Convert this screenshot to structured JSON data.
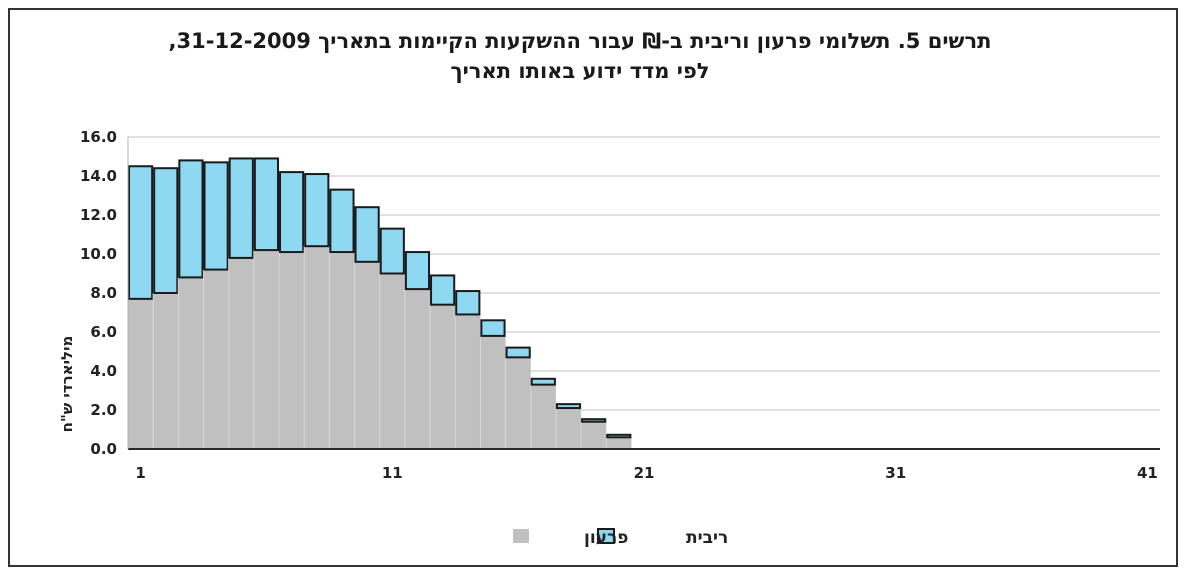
{
  "chart_data": {
    "type": "bar",
    "stacked": true,
    "title_line1": "תרשים 5.  תשלומי פרעון וריבית ב-₪ עבור ההשקעות הקיימות בתאריך 31-12-2009,",
    "title_line2": "לפי מדד ידוע באותו תאריך",
    "ylabel": "מיליארדי ש\"ח",
    "xlabel": "",
    "ylim": [
      0,
      16
    ],
    "xlim": [
      1,
      41
    ],
    "y_ticks": [
      "0.0",
      "2.0",
      "4.0",
      "6.0",
      "8.0",
      "10.0",
      "12.0",
      "14.0",
      "16.0"
    ],
    "x_ticks": [
      "1",
      "11",
      "21",
      "31",
      "41"
    ],
    "grid": true,
    "legend_position": "bottom",
    "x": [
      1,
      2,
      3,
      4,
      5,
      6,
      7,
      8,
      9,
      10,
      11,
      12,
      13,
      14,
      15,
      16,
      17,
      18,
      19,
      20
    ],
    "series": [
      {
        "name": "פרעון",
        "color": "#c0c0c0",
        "values": [
          7.7,
          8.0,
          8.8,
          9.2,
          9.8,
          10.2,
          10.1,
          10.4,
          10.1,
          9.6,
          9.0,
          8.2,
          7.4,
          6.9,
          5.8,
          4.7,
          3.3,
          2.1,
          1.4,
          0.6
        ]
      },
      {
        "name": "ריבית",
        "color": "#8fd8f2",
        "values": [
          6.8,
          6.4,
          6.0,
          5.5,
          5.1,
          4.7,
          4.1,
          3.7,
          3.2,
          2.8,
          2.3,
          1.9,
          1.5,
          1.2,
          0.8,
          0.5,
          0.3,
          0.2,
          0.1,
          0.1
        ]
      }
    ]
  }
}
